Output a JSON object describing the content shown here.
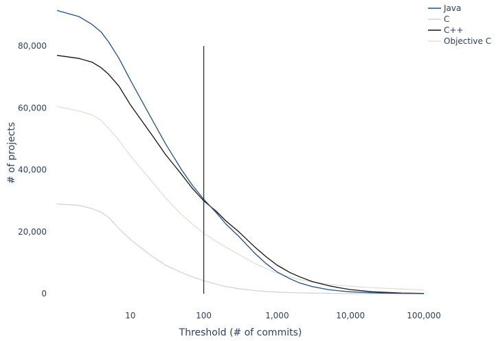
{
  "chart_data": {
    "type": "line",
    "xscale": "log",
    "xlabel": "Threshold (# of commits)",
    "ylabel": "# of projects",
    "xlim": [
      1,
      100000
    ],
    "ylim": [
      0,
      92000
    ],
    "x_ticks": [
      10,
      100,
      1000,
      10000,
      100000
    ],
    "x_tick_labels": [
      "10",
      "100",
      "1,000",
      "10,000",
      "100,000"
    ],
    "y_ticks": [
      0,
      20000,
      40000,
      60000,
      80000
    ],
    "y_tick_labels": [
      "0",
      "20,000",
      "40,000",
      "60,000",
      "80,000"
    ],
    "grid": false,
    "legend_position": "top-right",
    "reference_line": {
      "x": 100,
      "y_range": [
        0,
        80000
      ],
      "color": "#222222"
    },
    "x": [
      1,
      2,
      3,
      4,
      5,
      7,
      10,
      20,
      30,
      50,
      70,
      100,
      150,
      200,
      300,
      500,
      700,
      1000,
      1500,
      2000,
      3000,
      5000,
      7000,
      10000,
      20000,
      50000,
      100000
    ],
    "series": [
      {
        "name": "Java",
        "color": "#1f4e8c",
        "values": [
          91500,
          89500,
          87000,
          84500,
          81500,
          76000,
          69000,
          56000,
          48500,
          40000,
          35000,
          30500,
          26000,
          22500,
          18500,
          13000,
          9800,
          7000,
          4800,
          3500,
          2300,
          1300,
          900,
          600,
          250,
          80,
          30
        ]
      },
      {
        "name": "C",
        "color": "#d4d4d4",
        "values": [
          29000,
          28500,
          27500,
          26300,
          24700,
          21000,
          17500,
          12000,
          9200,
          6800,
          5400,
          4200,
          3000,
          2300,
          1600,
          1000,
          700,
          500,
          330,
          240,
          170,
          110,
          80,
          55,
          25,
          10,
          5
        ]
      },
      {
        "name": "C++",
        "color": "#111111",
        "values": [
          77000,
          76000,
          74800,
          73000,
          71000,
          67000,
          61000,
          51000,
          45000,
          38500,
          34000,
          30000,
          26500,
          23500,
          20000,
          15000,
          12000,
          9200,
          6800,
          5500,
          3900,
          2600,
          1900,
          1300,
          600,
          200,
          80
        ]
      },
      {
        "name": "Objective C",
        "color": "#e2dfd6",
        "values": [
          60500,
          59000,
          57800,
          56000,
          53500,
          49500,
          44500,
          36000,
          31000,
          25500,
          22500,
          19500,
          16800,
          15000,
          12700,
          9700,
          8200,
          6600,
          5400,
          4600,
          3800,
          3100,
          2700,
          2400,
          1900,
          1500,
          1200
        ]
      }
    ]
  }
}
